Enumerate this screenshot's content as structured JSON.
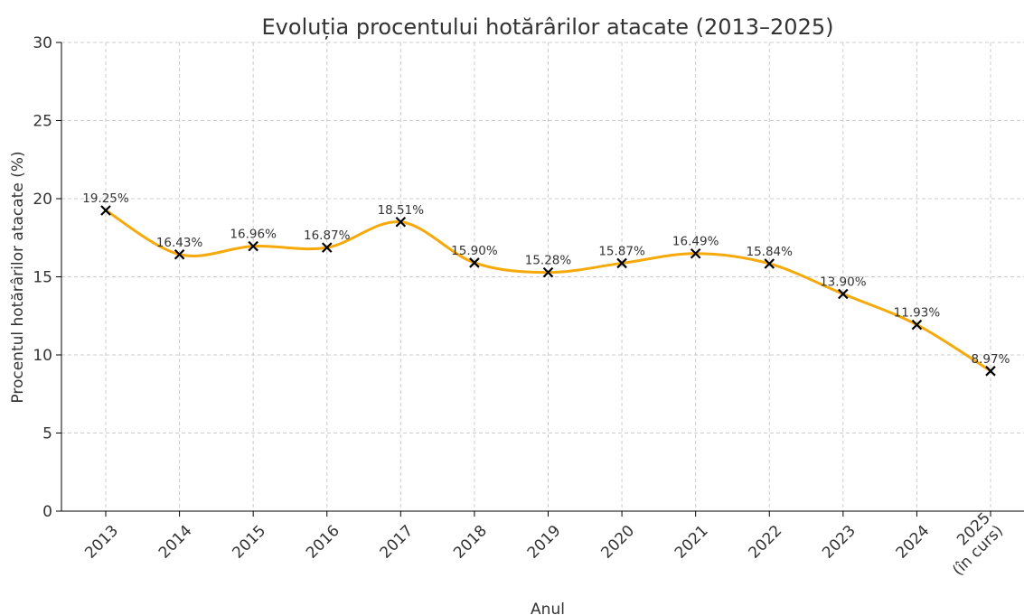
{
  "chart_data": {
    "type": "line",
    "title": "Evoluția procentului hotărârilor atacate (2013–2025)",
    "xlabel": "Anul",
    "ylabel": "Procentul hotărârilor atacate (%)",
    "categories": [
      "2013",
      "2014",
      "2015",
      "2016",
      "2017",
      "2018",
      "2019",
      "2020",
      "2021",
      "2022",
      "2023",
      "2024",
      "2025\n(în curs)"
    ],
    "values": [
      19.25,
      16.43,
      16.96,
      16.87,
      18.51,
      15.9,
      15.28,
      15.87,
      16.49,
      15.84,
      13.9,
      11.93,
      8.97
    ],
    "value_labels": [
      "19.25%",
      "16.43%",
      "16.96%",
      "16.87%",
      "18.51%",
      "15.90%",
      "15.28%",
      "15.87%",
      "16.49%",
      "15.84%",
      "13.90%",
      "11.93%",
      "8.97%"
    ],
    "color": "#f5a90a",
    "marker_color": "#000000",
    "ylim": [
      0,
      30
    ],
    "yticks": [
      0,
      5,
      10,
      15,
      20,
      25,
      30
    ],
    "grid": true
  }
}
